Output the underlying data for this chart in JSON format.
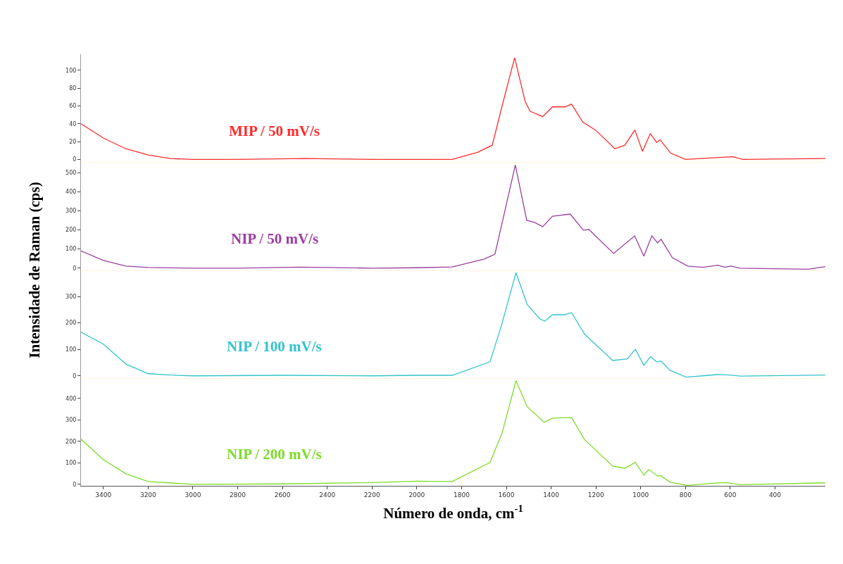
{
  "chart_data": [
    {
      "type": "line",
      "ylabel": "Intensidade de Raman (cps)",
      "xlim": [
        3500,
        175
      ],
      "xticks": [
        3400,
        3200,
        3000,
        2800,
        2600,
        2400,
        2200,
        2000,
        1800,
        1600,
        1400,
        1200,
        1000,
        800,
        600,
        400
      ],
      "ylim": [
        -3,
        118
      ],
      "yticks": [
        0,
        20,
        40,
        60,
        80,
        100
      ],
      "tick_labels": "y",
      "grid": false,
      "legend": false,
      "series": [
        {
          "name": "MIP / 50 mV/s",
          "color": "#ff2a2a",
          "x": [
            3500,
            3400,
            3300,
            3200,
            3100,
            3000,
            2800,
            2500,
            2200,
            2000,
            1842,
            1729,
            1663,
            1620,
            1563,
            1516,
            1494,
            1438,
            1394,
            1338,
            1309,
            1259,
            1202,
            1115,
            1071,
            1026,
            992,
            957,
            929,
            913,
            866,
            800,
            665,
            588,
            544,
            175
          ],
          "values": [
            40,
            24,
            12,
            5,
            1,
            0,
            0,
            1,
            0,
            0,
            0,
            8,
            16,
            59,
            114,
            65,
            54,
            48,
            59,
            59,
            62,
            42,
            33,
            12,
            16,
            33,
            9,
            29,
            19,
            22,
            7,
            0,
            2,
            3,
            0,
            1
          ]
        }
      ]
    },
    {
      "type": "line",
      "xlim": [
        3500,
        175
      ],
      "xticks": [
        3400,
        3200,
        3000,
        2800,
        2600,
        2400,
        2200,
        2000,
        1800,
        1600,
        1400,
        1200,
        1000,
        800,
        600,
        400
      ],
      "ylim": [
        -10,
        555
      ],
      "yticks": [
        0,
        100,
        200,
        300,
        400,
        500
      ],
      "tick_labels": "y",
      "grid": false,
      "legend": false,
      "series": [
        {
          "name": "NIP / 50 mV/s",
          "color": "#9b3fa0",
          "x": [
            3500,
            3400,
            3300,
            3200,
            3000,
            2800,
            2520,
            2200,
            2000,
            1842,
            1698,
            1651,
            1620,
            1560,
            1509,
            1474,
            1438,
            1394,
            1315,
            1256,
            1231,
            1121,
            1027,
            986,
            950,
            925,
            909,
            859,
            790,
            723,
            654,
            625,
            597,
            556,
            252,
            175
          ],
          "values": [
            90,
            40,
            11,
            3,
            0,
            0,
            5,
            0,
            2,
            6,
            48,
            73,
            231,
            540,
            250,
            239,
            217,
            272,
            283,
            199,
            202,
            77,
            169,
            63,
            169,
            132,
            151,
            55,
            11,
            4,
            15,
            4,
            11,
            0,
            -6,
            8
          ]
        }
      ]
    },
    {
      "type": "line",
      "xlim": [
        3500,
        175
      ],
      "xticks": [
        3400,
        3200,
        3000,
        2800,
        2600,
        2400,
        2200,
        2000,
        1800,
        1600,
        1400,
        1200,
        1000,
        800,
        600,
        400
      ],
      "ylim": [
        -8,
        400
      ],
      "yticks": [
        0,
        100,
        200,
        300
      ],
      "tick_labels": "y",
      "grid": false,
      "legend": false,
      "series": [
        {
          "name": "NIP / 100 mV/s",
          "color": "#33c4cc",
          "x": [
            3500,
            3400,
            3300,
            3200,
            3100,
            3000,
            2600,
            2200,
            2000,
            1842,
            1673,
            1620,
            1557,
            1507,
            1450,
            1428,
            1394,
            1338,
            1309,
            1250,
            1125,
            1059,
            1024,
            986,
            957,
            929,
            909,
            869,
            797,
            723,
            654,
            600,
            556,
            175
          ],
          "values": [
            165,
            120,
            45,
            8,
            3,
            0,
            2,
            0,
            2,
            2,
            53,
            196,
            390,
            270,
            215,
            207,
            231,
            231,
            239,
            157,
            58,
            64,
            101,
            40,
            72,
            53,
            56,
            21,
            -5,
            0,
            5,
            3,
            -1,
            3
          ]
        }
      ]
    },
    {
      "type": "line",
      "xlabel": "Número de onda, cm$^{-1}$",
      "xlim": [
        3500,
        175
      ],
      "xticks": [
        3400,
        3200,
        3000,
        2800,
        2600,
        2400,
        2200,
        2000,
        1800,
        1600,
        1400,
        1200,
        1000,
        800,
        600,
        400
      ],
      "ylim": [
        -7,
        495
      ],
      "yticks": [
        0,
        100,
        200,
        300,
        400
      ],
      "grid": false,
      "legend": false,
      "series": [
        {
          "name": "NIP / 200 mV/s",
          "color": "#7ddc2a",
          "x": [
            3500,
            3400,
            3300,
            3200,
            3000,
            2600,
            2200,
            2000,
            1842,
            1673,
            1620,
            1557,
            1507,
            1431,
            1394,
            1309,
            1250,
            1125,
            1071,
            1024,
            986,
            964,
            925,
            909,
            869,
            790,
            681,
            616,
            556,
            175
          ],
          "values": [
            210,
            115,
            49,
            13,
            0,
            2,
            8,
            15,
            13,
            102,
            236,
            482,
            361,
            289,
            308,
            311,
            207,
            85,
            75,
            102,
            43,
            69,
            39,
            40,
            10,
            -5,
            5,
            8,
            -2,
            7
          ]
        }
      ]
    }
  ]
}
